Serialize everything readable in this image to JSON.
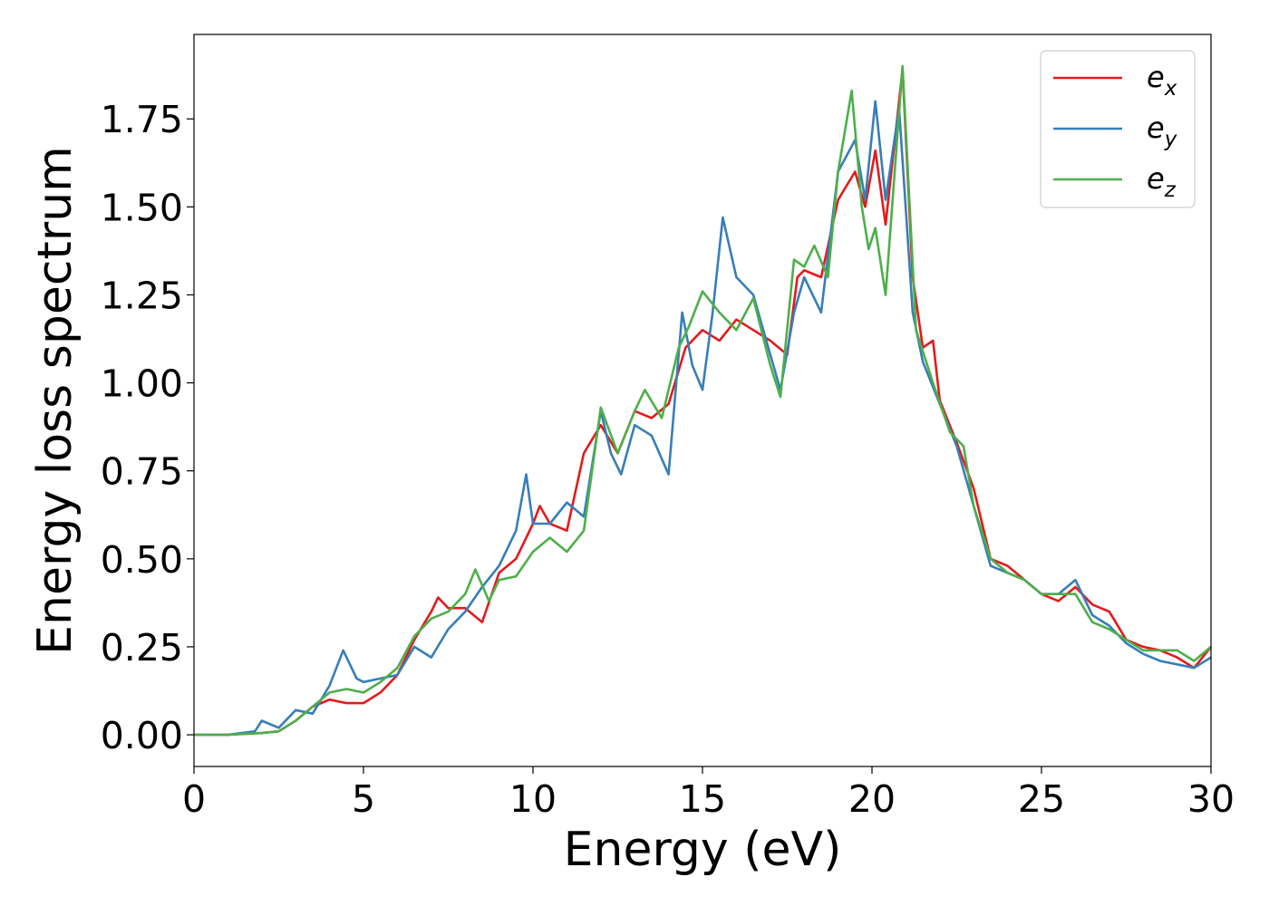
{
  "chart_data": {
    "type": "line",
    "xlabel": "Energy (eV)",
    "ylabel": "Energy loss spectrum",
    "xlim": [
      0,
      30
    ],
    "ylim": [
      -0.09,
      1.99
    ],
    "xticks": [
      "0",
      "5",
      "10",
      "15",
      "20",
      "25",
      "30"
    ],
    "yticks": [
      "0.00",
      "0.25",
      "0.50",
      "0.75",
      "1.00",
      "1.25",
      "1.50",
      "1.75"
    ],
    "grid": false,
    "legend_position": "top-right",
    "series": [
      {
        "name": "e",
        "subscript": "x",
        "color": "#e41a1c",
        "x": [
          0,
          1,
          2,
          2.5,
          3,
          3.5,
          4,
          4.5,
          5,
          5.5,
          6,
          6.5,
          7,
          7.2,
          7.5,
          8,
          8.5,
          9,
          9.5,
          10,
          10.2,
          10.5,
          11,
          11.5,
          12,
          12.5,
          13,
          13.5,
          14,
          14.5,
          15,
          15.5,
          16,
          16.5,
          17,
          17.5,
          17.8,
          18,
          18.5,
          19,
          19.5,
          19.8,
          20.1,
          20.4,
          20.9,
          21.2,
          21.5,
          21.8,
          22,
          22.5,
          23,
          23.5,
          24,
          24.5,
          25,
          25.5,
          26,
          26.5,
          27,
          27.5,
          28,
          28.5,
          29,
          29.5,
          30
        ],
        "y": [
          0.0,
          0.0,
          0.005,
          0.01,
          0.04,
          0.08,
          0.1,
          0.09,
          0.09,
          0.12,
          0.17,
          0.27,
          0.35,
          0.39,
          0.36,
          0.36,
          0.32,
          0.46,
          0.5,
          0.6,
          0.65,
          0.6,
          0.58,
          0.8,
          0.88,
          0.8,
          0.92,
          0.9,
          0.94,
          1.1,
          1.15,
          1.12,
          1.18,
          1.15,
          1.12,
          1.08,
          1.3,
          1.32,
          1.3,
          1.52,
          1.6,
          1.5,
          1.66,
          1.45,
          1.89,
          1.3,
          1.1,
          1.12,
          0.95,
          0.83,
          0.7,
          0.5,
          0.48,
          0.44,
          0.4,
          0.38,
          0.42,
          0.37,
          0.35,
          0.27,
          0.25,
          0.24,
          0.22,
          0.19,
          0.25
        ]
      },
      {
        "name": "e",
        "subscript": "y",
        "color": "#377eb8",
        "x": [
          0,
          1,
          1.8,
          2,
          2.5,
          3,
          3.5,
          4,
          4.4,
          4.8,
          5,
          5.5,
          6,
          6.5,
          7,
          7.5,
          8,
          8.5,
          9,
          9.5,
          9.8,
          10,
          10.5,
          11,
          11.5,
          12,
          12.3,
          12.6,
          13,
          13.5,
          14,
          14.4,
          14.7,
          15,
          15.3,
          15.6,
          16,
          16.5,
          17,
          17.3,
          17.7,
          18,
          18.5,
          19,
          19.5,
          19.8,
          20.1,
          20.4,
          20.8,
          21.2,
          21.5,
          22,
          22.5,
          23,
          23.5,
          24,
          24.5,
          25,
          25.5,
          26,
          26.5,
          27,
          27.5,
          28,
          28.5,
          29,
          29.5,
          30
        ],
        "y": [
          0.0,
          0.0,
          0.01,
          0.04,
          0.02,
          0.07,
          0.06,
          0.14,
          0.24,
          0.16,
          0.15,
          0.16,
          0.17,
          0.25,
          0.22,
          0.3,
          0.35,
          0.42,
          0.48,
          0.58,
          0.74,
          0.6,
          0.6,
          0.66,
          0.62,
          0.92,
          0.8,
          0.74,
          0.88,
          0.85,
          0.74,
          1.2,
          1.05,
          0.98,
          1.2,
          1.47,
          1.3,
          1.25,
          1.08,
          0.98,
          1.2,
          1.3,
          1.2,
          1.6,
          1.69,
          1.52,
          1.8,
          1.52,
          1.78,
          1.2,
          1.06,
          0.94,
          0.82,
          0.65,
          0.48,
          0.46,
          0.44,
          0.4,
          0.4,
          0.44,
          0.34,
          0.31,
          0.26,
          0.23,
          0.21,
          0.2,
          0.19,
          0.22
        ]
      },
      {
        "name": "e",
        "subscript": "z",
        "color": "#4daf4a",
        "x": [
          0,
          1,
          2,
          2.5,
          3,
          3.5,
          4,
          4.5,
          5,
          5.5,
          6,
          6.5,
          7,
          7.5,
          8,
          8.3,
          8.7,
          9,
          9.5,
          10,
          10.5,
          11,
          11.5,
          12,
          12.5,
          13,
          13.3,
          13.8,
          14.3,
          14.6,
          15,
          15.5,
          16,
          16.5,
          17,
          17.3,
          17.7,
          18,
          18.3,
          18.7,
          19,
          19.4,
          19.7,
          19.9,
          20.1,
          20.4,
          20.9,
          21.3,
          21.8,
          22.3,
          22.7,
          23,
          23.5,
          24,
          24.5,
          25,
          25.5,
          26,
          26.5,
          27,
          27.5,
          28,
          28.5,
          29,
          29.5,
          30
        ],
        "y": [
          0.0,
          0.0,
          0.005,
          0.01,
          0.04,
          0.08,
          0.12,
          0.13,
          0.12,
          0.15,
          0.19,
          0.28,
          0.33,
          0.35,
          0.4,
          0.47,
          0.38,
          0.44,
          0.45,
          0.52,
          0.56,
          0.52,
          0.58,
          0.93,
          0.8,
          0.92,
          0.98,
          0.9,
          1.1,
          1.16,
          1.26,
          1.2,
          1.15,
          1.24,
          1.05,
          0.96,
          1.35,
          1.33,
          1.39,
          1.3,
          1.6,
          1.83,
          1.5,
          1.38,
          1.44,
          1.25,
          1.9,
          1.15,
          1.0,
          0.86,
          0.82,
          0.65,
          0.5,
          0.46,
          0.44,
          0.4,
          0.4,
          0.4,
          0.32,
          0.3,
          0.27,
          0.24,
          0.24,
          0.24,
          0.21,
          0.25
        ]
      }
    ]
  }
}
